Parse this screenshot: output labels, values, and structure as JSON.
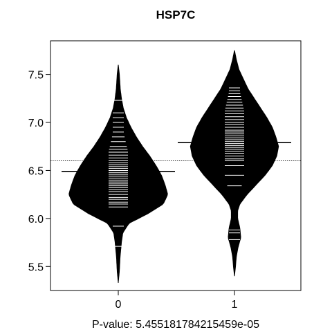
{
  "chart_data": {
    "type": "beanplot",
    "title": "HSP7C",
    "xlabel": "P-value: 5.455181784215459e-05",
    "ylabel": "",
    "categories": [
      "0",
      "1"
    ],
    "ylim": [
      5.25,
      7.85
    ],
    "yticks": [
      5.5,
      6.0,
      6.5,
      7.0,
      7.5
    ],
    "ytick_labels": [
      "5.5",
      "6.0",
      "6.5",
      "7.0",
      "7.5"
    ],
    "overall_mean": 6.6,
    "grid": false,
    "beans": [
      {
        "category": "0",
        "mean": 6.49,
        "range": [
          5.33,
          7.6
        ],
        "density": [
          [
            5.33,
            0.0
          ],
          [
            5.45,
            0.012
          ],
          [
            5.6,
            0.02
          ],
          [
            5.75,
            0.035
          ],
          [
            5.85,
            0.05
          ],
          [
            5.95,
            0.12
          ],
          [
            6.05,
            0.33
          ],
          [
            6.15,
            0.5
          ],
          [
            6.25,
            0.55
          ],
          [
            6.35,
            0.52
          ],
          [
            6.45,
            0.48
          ],
          [
            6.55,
            0.42
          ],
          [
            6.65,
            0.35
          ],
          [
            6.75,
            0.27
          ],
          [
            6.85,
            0.2
          ],
          [
            6.95,
            0.14
          ],
          [
            7.05,
            0.09
          ],
          [
            7.15,
            0.055
          ],
          [
            7.25,
            0.035
          ],
          [
            7.35,
            0.022
          ],
          [
            7.5,
            0.012
          ],
          [
            7.6,
            0.0
          ]
        ],
        "observations": [
          5.71,
          5.92,
          6.12,
          6.15,
          6.17,
          6.2,
          6.22,
          6.25,
          6.28,
          6.3,
          6.32,
          6.34,
          6.36,
          6.38,
          6.4,
          6.42,
          6.44,
          6.46,
          6.48,
          6.5,
          6.52,
          6.54,
          6.56,
          6.58,
          6.6,
          6.63,
          6.66,
          6.69,
          6.72,
          6.75,
          6.8,
          6.85,
          6.9,
          6.95,
          7.0,
          7.05,
          7.1,
          7.23
        ]
      },
      {
        "category": "1",
        "mean": 6.79,
        "range": [
          5.4,
          7.75
        ],
        "density": [
          [
            5.4,
            0.0
          ],
          [
            5.5,
            0.012
          ],
          [
            5.6,
            0.02
          ],
          [
            5.7,
            0.04
          ],
          [
            5.8,
            0.07
          ],
          [
            5.9,
            0.06
          ],
          [
            6.0,
            0.035
          ],
          [
            6.08,
            0.035
          ],
          [
            6.15,
            0.06
          ],
          [
            6.25,
            0.14
          ],
          [
            6.35,
            0.24
          ],
          [
            6.45,
            0.34
          ],
          [
            6.55,
            0.42
          ],
          [
            6.65,
            0.47
          ],
          [
            6.75,
            0.49
          ],
          [
            6.85,
            0.46
          ],
          [
            6.95,
            0.42
          ],
          [
            7.05,
            0.36
          ],
          [
            7.15,
            0.29
          ],
          [
            7.25,
            0.22
          ],
          [
            7.35,
            0.15
          ],
          [
            7.45,
            0.1
          ],
          [
            7.55,
            0.05
          ],
          [
            7.65,
            0.022
          ],
          [
            7.75,
            0.0
          ]
        ],
        "observations": [
          5.78,
          5.85,
          5.88,
          6.34,
          6.45,
          6.55,
          6.6,
          6.62,
          6.65,
          6.68,
          6.7,
          6.72,
          6.74,
          6.76,
          6.78,
          6.8,
          6.82,
          6.84,
          6.86,
          6.88,
          6.9,
          6.92,
          6.95,
          6.98,
          7.0,
          7.03,
          7.06,
          7.09,
          7.12,
          7.15,
          7.18,
          7.21,
          7.24,
          7.27,
          7.3,
          7.33,
          7.36
        ]
      }
    ]
  }
}
